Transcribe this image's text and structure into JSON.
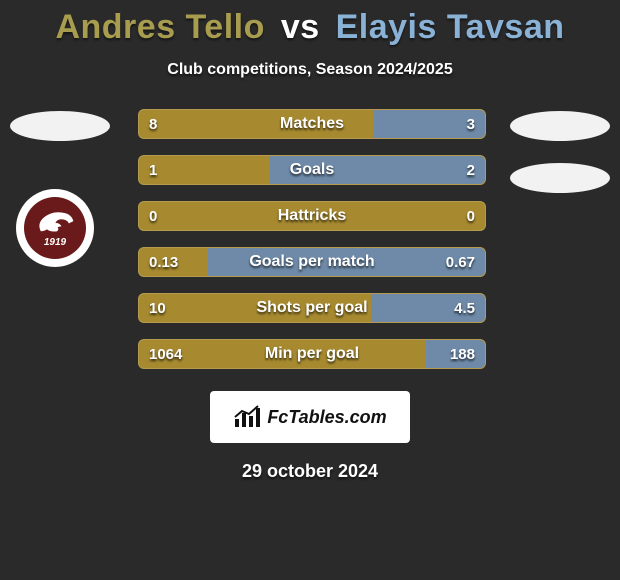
{
  "title": {
    "player1": "Andres Tello",
    "vs": "vs",
    "player2": "Elayis Tavsan",
    "color1": "#a89c4e",
    "color_vs": "#ffffff",
    "color2": "#8ab2d6"
  },
  "subtitle": "Club competitions, Season 2024/2025",
  "background_color": "#2a2a2a",
  "colors": {
    "left_bar": "#a78a2f",
    "right_bar": "#6e8aa8",
    "ellipse": "#f2f2f2",
    "badge_ring": "#ffffff",
    "badge_inner": "#6a1a1a",
    "brand_box": "#ffffff",
    "brand_text": "#111111",
    "text": "#ffffff"
  },
  "club_badge": {
    "year": "1919"
  },
  "bars": [
    {
      "label": "Matches",
      "left": "8",
      "right": "3",
      "left_pct": 68,
      "right_pct": 32
    },
    {
      "label": "Goals",
      "left": "1",
      "right": "2",
      "left_pct": 38,
      "right_pct": 62
    },
    {
      "label": "Hattricks",
      "left": "0",
      "right": "0",
      "left_pct": 100,
      "right_pct": 0
    },
    {
      "label": "Goals per match",
      "left": "0.13",
      "right": "0.67",
      "left_pct": 20,
      "right_pct": 80
    },
    {
      "label": "Shots per goal",
      "left": "10",
      "right": "4.5",
      "left_pct": 67,
      "right_pct": 33
    },
    {
      "label": "Min per goal",
      "left": "1064",
      "right": "188",
      "left_pct": 83,
      "right_pct": 17
    }
  ],
  "brand": {
    "text": "FcTables.com"
  },
  "date": "29 october 2024"
}
